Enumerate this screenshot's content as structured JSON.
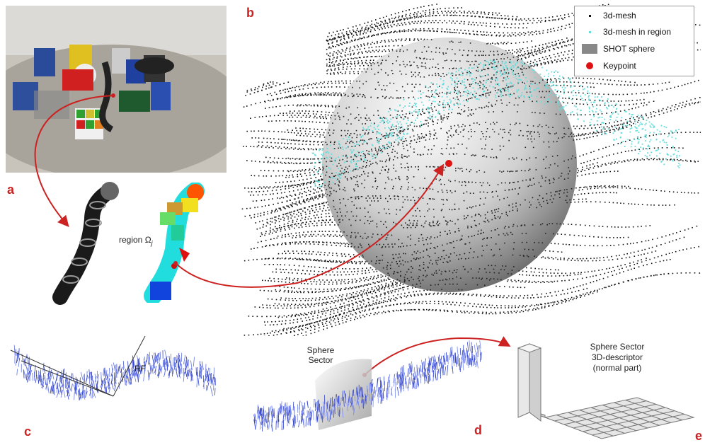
{
  "panel_labels": {
    "a": "a",
    "b": "b",
    "c": "c",
    "d": "d",
    "e": "e"
  },
  "legend": {
    "items": [
      {
        "label": "3d-mesh",
        "symbol": "dot",
        "color": "#111111"
      },
      {
        "label": "3d-mesh in region",
        "symbol": "dot",
        "color": "#66dddd"
      },
      {
        "label": "SHOT sphere",
        "symbol": "square",
        "color": "#888888"
      },
      {
        "label": "Keypoint",
        "symbol": "circle",
        "color": "#dd1111"
      }
    ]
  },
  "annotations": {
    "region": "region Ω",
    "region_subscript": "j",
    "rf": "RF",
    "sphere_sector_line1": "Sphere",
    "sphere_sector_line2": "Sector",
    "descriptor_line1": "Sphere Sector",
    "descriptor_line2": "3D-descriptor",
    "descriptor_line3": "(normal part)"
  },
  "colors": {
    "accent_red": "#cc2222",
    "mesh_black": "#111111",
    "region_cyan": "#66dddd",
    "normals_blue": "#3344cc"
  }
}
